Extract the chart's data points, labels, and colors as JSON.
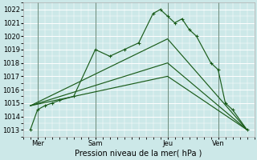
{
  "xlabel": "Pression niveau de la mer( hPa )",
  "bg_color": "#cce8e8",
  "grid_color": "#ffffff",
  "line_color": "#1a5c1a",
  "ylim": [
    1012.5,
    1022.5
  ],
  "yticks": [
    1013,
    1014,
    1015,
    1016,
    1017,
    1018,
    1019,
    1020,
    1021,
    1022
  ],
  "xlim": [
    0,
    16
  ],
  "day_ticks": [
    1,
    5,
    10,
    13.5
  ],
  "day_labels": [
    "Mer",
    "Sam",
    "Jeu",
    "Ven"
  ],
  "vlines": [
    1,
    5,
    10,
    13.5
  ],
  "series_zigzag": {
    "x": [
      0.5,
      1.0,
      1.5,
      2.0,
      2.5,
      3.5,
      5.0,
      6.0,
      7.0,
      8.0,
      9.0,
      9.5,
      10.0,
      10.5,
      11.0,
      11.5,
      12.0,
      13.0,
      13.5,
      14.0,
      14.5,
      15.5
    ],
    "y": [
      1013.0,
      1014.5,
      1014.8,
      1015.0,
      1015.2,
      1015.5,
      1019.0,
      1018.5,
      1019.0,
      1019.5,
      1021.7,
      1022.0,
      1021.5,
      1021.0,
      1021.3,
      1020.5,
      1020.0,
      1018.0,
      1017.5,
      1015.0,
      1014.5,
      1013.0
    ]
  },
  "series_straight": [
    {
      "x": [
        0.5,
        10.0,
        15.5
      ],
      "y": [
        1014.8,
        1019.8,
        1013.0
      ]
    },
    {
      "x": [
        0.5,
        10.0,
        15.5
      ],
      "y": [
        1014.8,
        1018.0,
        1013.0
      ]
    },
    {
      "x": [
        0.5,
        10.0,
        15.5
      ],
      "y": [
        1014.8,
        1017.0,
        1013.0
      ]
    }
  ]
}
